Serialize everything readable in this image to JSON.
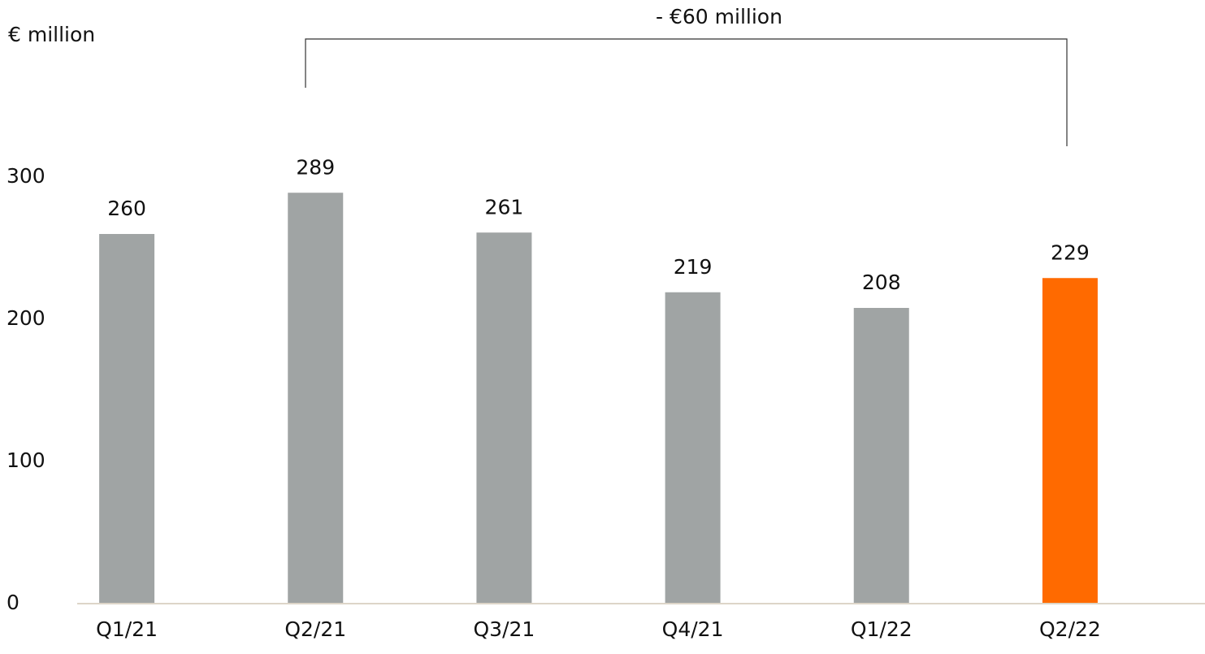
{
  "chart_data": {
    "type": "bar",
    "y_axis_label": "€ million",
    "annotation": "- €60 million",
    "categories": [
      "Q1/21",
      "Q2/21",
      "Q3/21",
      "Q4/21",
      "Q1/22",
      "Q2/22"
    ],
    "values": [
      260,
      289,
      261,
      219,
      208,
      229
    ],
    "colors": [
      "#a0a4a4",
      "#a0a4a4",
      "#a0a4a4",
      "#a0a4a4",
      "#a0a4a4",
      "#ff6a00"
    ],
    "ylim": [
      0,
      300
    ],
    "yticks": [
      0,
      100,
      200,
      300
    ],
    "grid": false
  }
}
